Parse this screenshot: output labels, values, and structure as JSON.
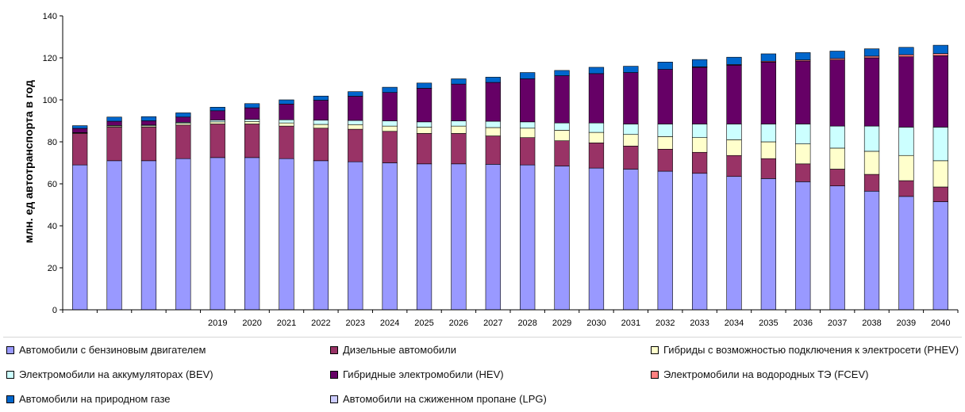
{
  "chart_data": {
    "type": "bar",
    "stacked": true,
    "ylabel": "млн. ед автотранспорта  в год",
    "ylim": [
      0,
      140
    ],
    "yticks": [
      0,
      20,
      40,
      60,
      80,
      100,
      120,
      140
    ],
    "categories": [
      "",
      "",
      "",
      "",
      "2019",
      "2020",
      "2021",
      "2022",
      "2023",
      "2024",
      "2025",
      "2026",
      "2027",
      "2028",
      "2029",
      "2030",
      "2031",
      "2032",
      "2033",
      "2034",
      "2035",
      "2036",
      "2037",
      "2038",
      "2039",
      "2040"
    ],
    "series": [
      {
        "name": "Автомобили с бензиновым двигателем",
        "color": "#9999ff",
        "values": [
          69,
          71,
          71,
          72,
          72.5,
          72.5,
          72,
          71,
          70.5,
          70,
          69.5,
          69.5,
          69.3,
          69,
          68.5,
          67.5,
          67,
          66,
          65,
          63.5,
          62.5,
          61,
          59,
          56.5,
          54,
          51.5
        ]
      },
      {
        "name": "Дизельные автомобили",
        "color": "#993366",
        "values": [
          15,
          16,
          16,
          16,
          16,
          16,
          15.5,
          15.5,
          15.5,
          15,
          14.5,
          14.5,
          13.5,
          13,
          12,
          12,
          11,
          10.5,
          10,
          10,
          9.5,
          8.5,
          8,
          8,
          7.5,
          7
        ]
      },
      {
        "name": "Гибриды с возможностью подключения к электросети (PHEV)",
        "color": "#ffffcc",
        "values": [
          0.3,
          0.5,
          0.6,
          0.8,
          1,
          1.2,
          1.5,
          1.8,
          2.2,
          2.5,
          3,
          3.5,
          4,
          4.5,
          5,
          5,
          5.5,
          6,
          7,
          7.5,
          8,
          9.5,
          10,
          11,
          12,
          12.5
        ]
      },
      {
        "name": "Электромобили на  аккумуляторах (BEV)",
        "color": "#ccffff",
        "values": [
          0.1,
          0.3,
          0.4,
          0.5,
          0.8,
          1,
          1.5,
          2,
          2,
          2.5,
          2.5,
          2.5,
          3,
          3,
          3.5,
          4.5,
          5,
          6,
          6.5,
          7.5,
          8.5,
          9.5,
          10.5,
          12,
          13.5,
          16
        ]
      },
      {
        "name": "Гибридные электромобили (HEV)",
        "color": "#660066",
        "values": [
          2,
          2,
          2,
          2.5,
          4.5,
          5.5,
          7.5,
          9.5,
          11.5,
          13.5,
          16,
          17.5,
          18.5,
          20.5,
          22.5,
          23.5,
          24.5,
          26,
          27,
          28,
          29.5,
          30,
          31.5,
          32.5,
          33.5,
          34
        ]
      },
      {
        "name": "Электромобили на  водородных ТЭ (FCEV)",
        "color": "#ff8080",
        "values": [
          0,
          0,
          0,
          0,
          0,
          0,
          0,
          0,
          0,
          0,
          0,
          0,
          0,
          0,
          0,
          0,
          0,
          0,
          0.2,
          0.3,
          0.4,
          0.5,
          0.7,
          0.8,
          1,
          1
        ]
      },
      {
        "name": "Автомобили на природном газе",
        "color": "#0066cc",
        "values": [
          1.3,
          2,
          2,
          2,
          1.7,
          2,
          2,
          2,
          2.2,
          2.5,
          2.5,
          2.5,
          2.5,
          3,
          2.5,
          3,
          3,
          3.5,
          3.5,
          3.5,
          3.5,
          3.5,
          3.5,
          3.5,
          3.5,
          4
        ]
      },
      {
        "name": "Автомобили на сжиженном пропане (LPG)",
        "color": "#ccccff",
        "values": [
          0,
          0,
          0,
          0,
          0,
          0,
          0,
          0,
          0,
          0,
          0,
          0,
          0,
          0,
          0,
          0,
          0,
          0,
          0,
          0,
          0,
          0,
          0,
          0,
          0,
          0
        ]
      }
    ]
  }
}
